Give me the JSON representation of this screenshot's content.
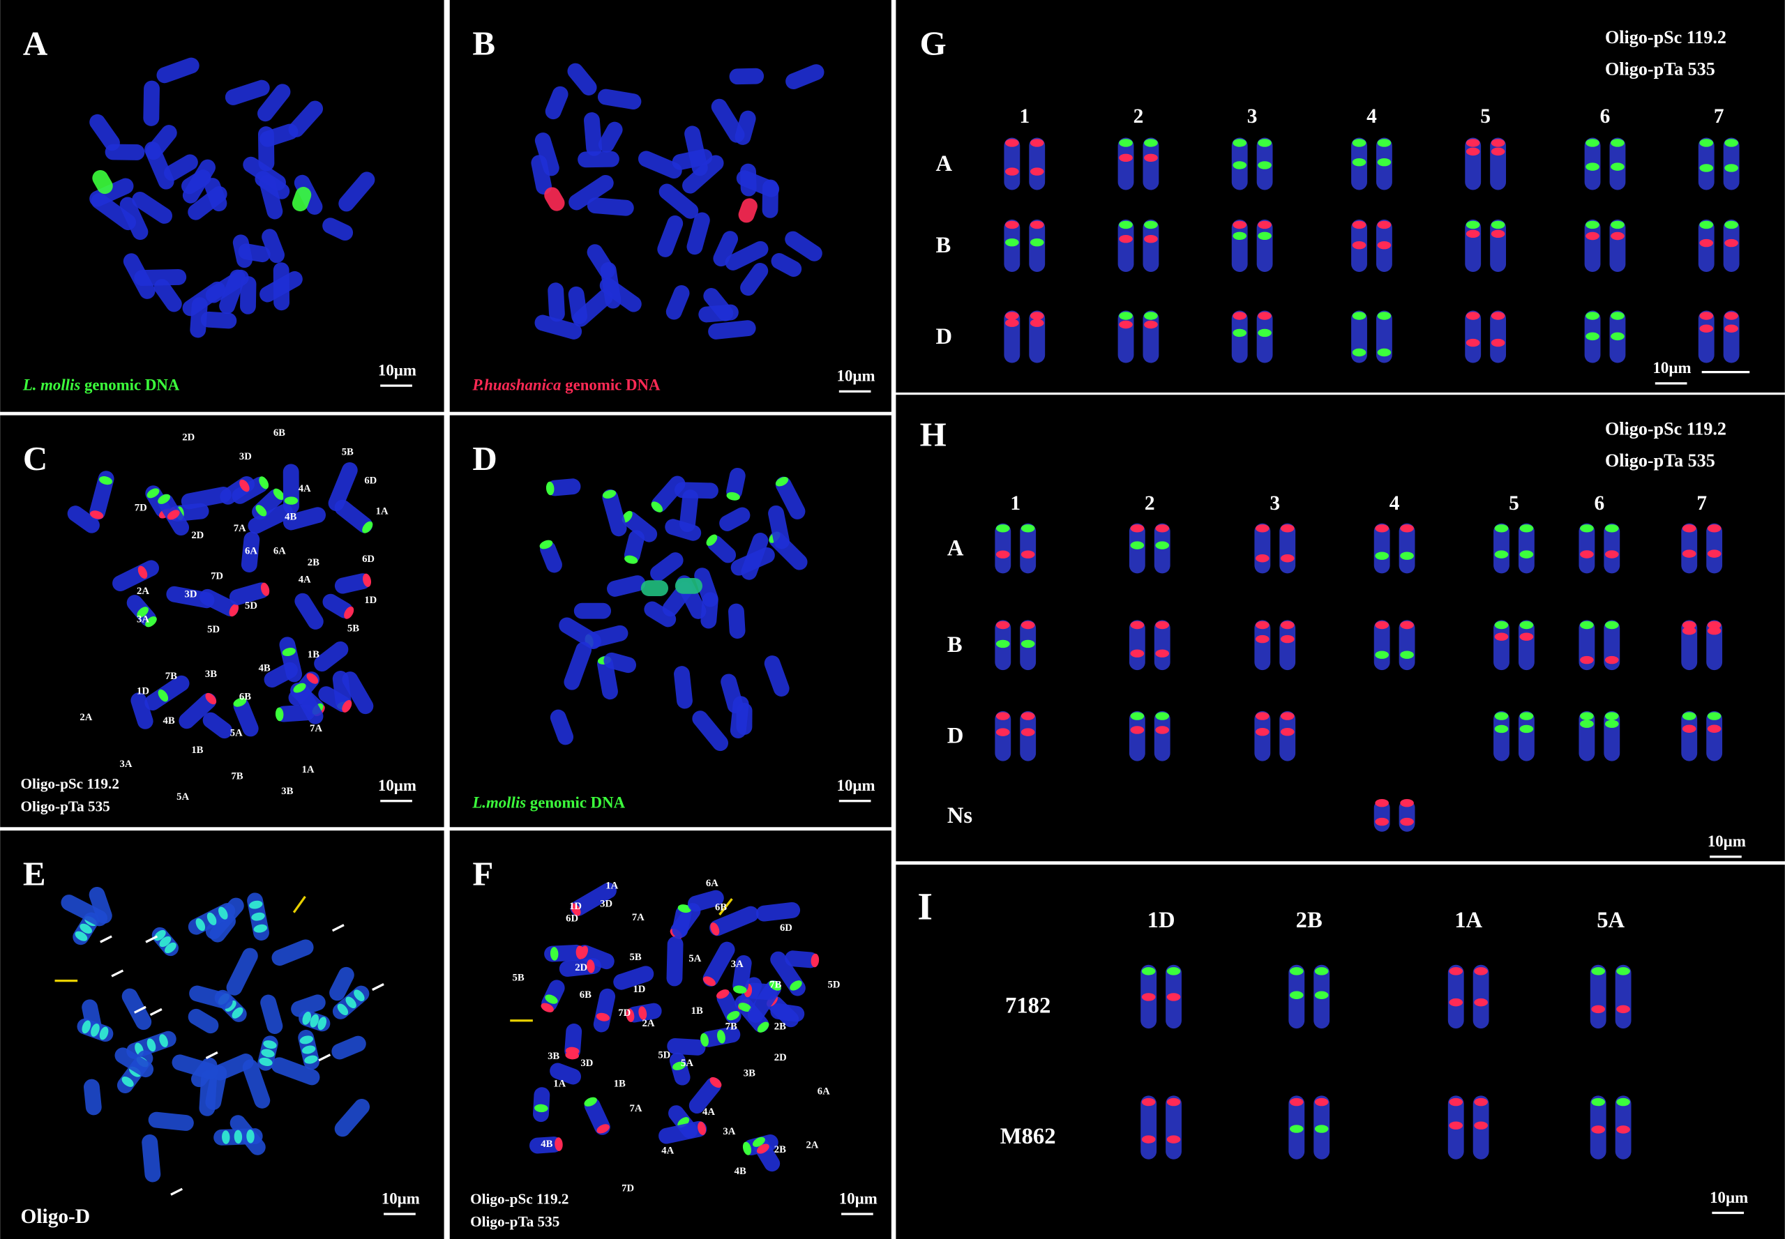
{
  "panels": {
    "A": {
      "label": "A",
      "caption": [
        "L. mollis",
        " genomic DNA"
      ],
      "scale": "10µm"
    },
    "B": {
      "label": "B",
      "caption": [
        "P.huashanica",
        " genomic DNA"
      ],
      "scale": "10µm"
    },
    "C": {
      "label": "C",
      "caption": [
        "Oligo-pSc 119.2",
        "Oligo-pTa 535"
      ],
      "scale": "10µm",
      "chromosomes": [
        "2D",
        "6B",
        "3D",
        "5B",
        "6D",
        "7D",
        "4A",
        "1A",
        "2D",
        "7A",
        "4B",
        "6D",
        "7D",
        "6A",
        "6A",
        "2B",
        "2A",
        "3D",
        "5D",
        "4A",
        "1D",
        "3A",
        "5D",
        "5B",
        "1B",
        "7B",
        "3B",
        "4B",
        "1D",
        "6B",
        "5A",
        "2A",
        "4B",
        "7A",
        "3A",
        "1B",
        "1A",
        "5A",
        "7B",
        "3B"
      ]
    },
    "D": {
      "label": "D",
      "caption": [
        "L.mollis",
        " genomic DNA"
      ],
      "scale": "10µm"
    },
    "E": {
      "label": "E",
      "caption": [
        "Oligo-D"
      ],
      "scale": "10µm"
    },
    "F": {
      "label": "F",
      "caption": [
        "Oligo-pSc 119.2",
        "Oligo-pTa 535"
      ],
      "scale": "10µm",
      "chromosomes": [
        "1A",
        "6A",
        "1D",
        "3D",
        "6B",
        "6D",
        "7A",
        "6D",
        "5B",
        "5B",
        "5A",
        "3A",
        "2D",
        "1D",
        "7B",
        "5D",
        "6B",
        "1B",
        "2B",
        "7D",
        "2A",
        "7B",
        "2D",
        "3B",
        "3D",
        "1B",
        "5D",
        "5A",
        "3B",
        "6A",
        "1A",
        "7A",
        "4A",
        "3A",
        "4B",
        "2B",
        "2A",
        "4B",
        "4A",
        "7D"
      ]
    },
    "G": {
      "label": "G",
      "legend": [
        "Oligo-pSc 119.2",
        "Oligo-pTa 535"
      ],
      "columns": [
        "1",
        "2",
        "3",
        "4",
        "5",
        "6",
        "7"
      ],
      "rows": [
        "A",
        "B",
        "D"
      ],
      "scale": "10µm"
    },
    "H": {
      "label": "H",
      "legend": [
        "Oligo-pSc 119.2",
        "Oligo-pTa 535"
      ],
      "columns": [
        "1",
        "2",
        "3",
        "4",
        "5",
        "6",
        "7"
      ],
      "rows": [
        "A",
        "B",
        "D",
        "Ns"
      ],
      "scale": "10µm"
    },
    "I": {
      "label": "I",
      "columns": [
        "1D",
        "2B",
        "1A",
        "5A"
      ],
      "rows": [
        "7182",
        "M862"
      ],
      "scale": "10µm"
    }
  }
}
